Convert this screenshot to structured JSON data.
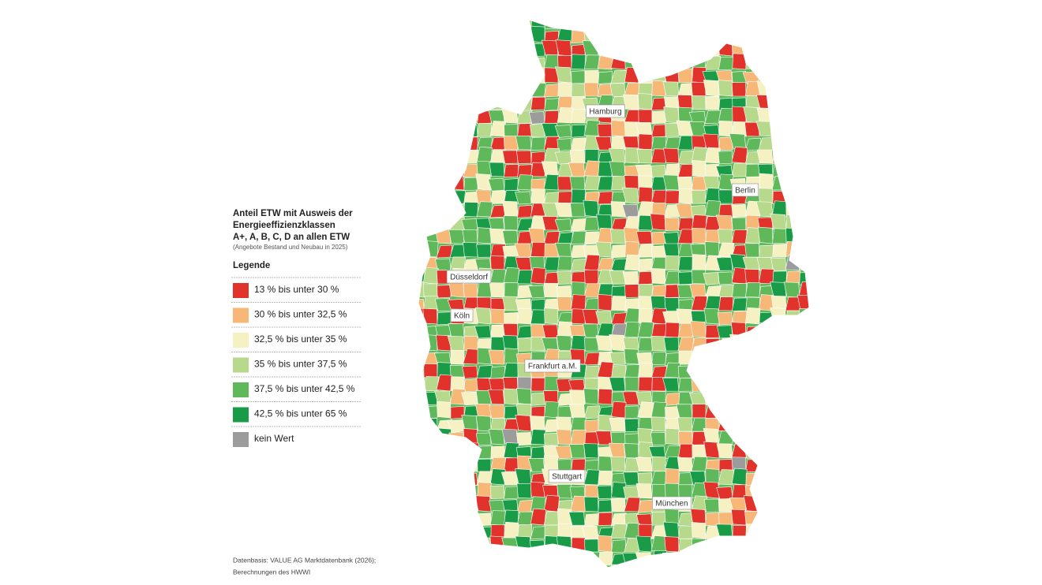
{
  "title": [
    "Anteil ETW mit Ausweis der",
    "Energieeffizienzklassen",
    "A+, A, B, C, D an allen ETW"
  ],
  "subtitle": "(Angebote Bestand und Neubau in 2025)",
  "legend": {
    "title": "Legende",
    "items": [
      {
        "label": "13 % bis unter 30 %",
        "color": "#e1322b"
      },
      {
        "label": "30 % bis unter 32,5 %",
        "color": "#f6b777"
      },
      {
        "label": "32,5 % bis unter 35 %",
        "color": "#f6f1c3"
      },
      {
        "label": "35 % bis unter 37,5 %",
        "color": "#b6d98b"
      },
      {
        "label": "37,5 % bis unter 42,5 %",
        "color": "#5fb85a"
      },
      {
        "label": "42,5 % bis unter 65 %",
        "color": "#199b48"
      },
      {
        "label": "kein Wert",
        "color": "#9c9c9c"
      }
    ]
  },
  "cities": [
    "Hamburg",
    "Berlin",
    "Düsseldorf",
    "Köln",
    "Frankfurt a.M.",
    "Stuttgart",
    "München"
  ],
  "source": [
    "Datenbasis: VALUE AG Marktdatenbank (2026);",
    "Berechnungen des HWWI"
  ]
}
